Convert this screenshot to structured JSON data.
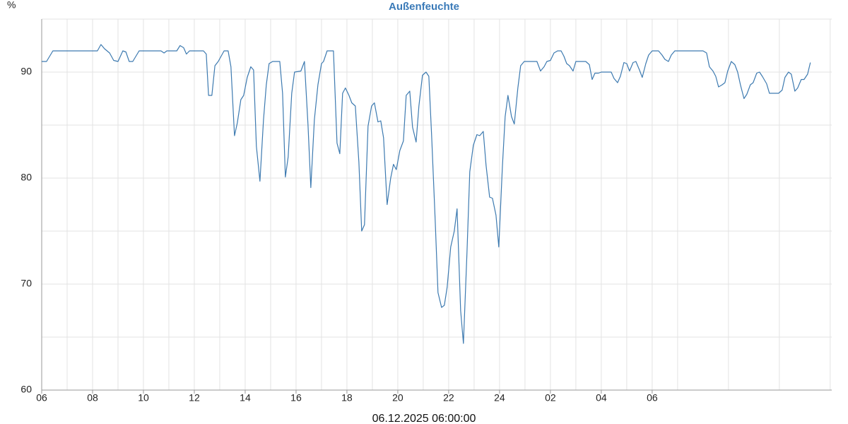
{
  "chart_data": {
    "type": "line",
    "title": "Außenfeuchte",
    "y_label": "%",
    "x_label": "06.12.2025 06:00:00",
    "xlim": [
      6,
      37.06
    ],
    "xticks": [
      {
        "value": 6,
        "label": "06"
      },
      {
        "value": 8,
        "label": "08"
      },
      10,
      12,
      14,
      16,
      18,
      20,
      22,
      24,
      {
        "value": 26,
        "label": "02"
      },
      {
        "value": 28,
        "label": "04"
      },
      {
        "value": 30,
        "label": "06"
      }
    ],
    "x_minor_ticks": [
      7,
      9,
      11,
      13,
      15,
      17,
      19,
      21,
      23,
      25,
      27,
      29,
      31,
      33,
      35,
      37
    ],
    "ylim": [
      60,
      95
    ],
    "yticks": [
      60,
      70,
      80,
      90
    ],
    "y_minor_ticks": [
      65,
      75,
      85,
      95
    ],
    "grid": true,
    "x": [
      6.0,
      6.19,
      6.44,
      8.19,
      8.33,
      8.47,
      8.67,
      8.83,
      9.0,
      9.19,
      9.31,
      9.44,
      9.58,
      9.83,
      10.69,
      10.81,
      10.92,
      11.31,
      11.44,
      11.58,
      11.69,
      11.81,
      12.36,
      12.47,
      12.56,
      12.69,
      12.81,
      12.94,
      13.17,
      13.33,
      13.44,
      13.58,
      13.69,
      13.83,
      13.94,
      14.08,
      14.22,
      14.33,
      14.44,
      14.58,
      14.72,
      14.83,
      14.94,
      15.08,
      15.36,
      15.47,
      15.58,
      15.69,
      15.83,
      15.94,
      16.19,
      16.33,
      16.47,
      16.58,
      16.72,
      16.86,
      17.0,
      17.08,
      17.22,
      17.47,
      17.61,
      17.72,
      17.83,
      17.94,
      18.08,
      18.19,
      18.33,
      18.47,
      18.58,
      18.69,
      18.83,
      18.97,
      19.08,
      19.22,
      19.33,
      19.44,
      19.58,
      19.72,
      19.83,
      19.94,
      20.08,
      20.22,
      20.33,
      20.47,
      20.58,
      20.72,
      20.83,
      20.97,
      21.11,
      21.22,
      21.33,
      21.47,
      21.58,
      21.72,
      21.83,
      21.94,
      22.08,
      22.22,
      22.33,
      22.47,
      22.58,
      22.72,
      22.83,
      22.97,
      23.11,
      23.22,
      23.36,
      23.47,
      23.61,
      23.72,
      23.86,
      23.97,
      24.11,
      24.22,
      24.33,
      24.47,
      24.58,
      24.72,
      24.83,
      24.97,
      25.47,
      25.61,
      25.75,
      25.86,
      26.0,
      26.14,
      26.28,
      26.42,
      26.53,
      26.64,
      26.75,
      26.89,
      27.0,
      27.39,
      27.53,
      27.64,
      27.75,
      27.89,
      28.0,
      28.39,
      28.5,
      28.64,
      28.75,
      28.89,
      29.0,
      29.11,
      29.25,
      29.36,
      29.5,
      29.61,
      29.75,
      29.86,
      30.0,
      30.25,
      30.39,
      30.5,
      30.64,
      30.75,
      30.89,
      32.0,
      32.14,
      32.25,
      32.39,
      32.5,
      32.61,
      32.75,
      32.86,
      32.97,
      33.11,
      33.25,
      33.36,
      33.47,
      33.61,
      33.72,
      33.86,
      33.97,
      34.11,
      34.22,
      34.33,
      34.5,
      34.61,
      34.97,
      35.11,
      35.22,
      35.36,
      35.47,
      35.61,
      35.72,
      35.86,
      35.97,
      36.11,
      36.22
    ],
    "series": [
      {
        "color": "#3d7ab0",
        "values": [
          91,
          91,
          92,
          92,
          92.6,
          92.2,
          91.8,
          91.1,
          91,
          92,
          91.9,
          91,
          91,
          92,
          92,
          91.8,
          92,
          92,
          92.5,
          92.3,
          91.7,
          92,
          92,
          91.7,
          87.8,
          87.8,
          90.6,
          91,
          92,
          92,
          90.5,
          84,
          85.2,
          87.4,
          87.8,
          89.5,
          90.5,
          90.2,
          83,
          79.7,
          85.5,
          88.8,
          90.8,
          91,
          91,
          88,
          80.1,
          82,
          88,
          90,
          90.1,
          91,
          85,
          79.1,
          85.5,
          88.8,
          90.8,
          91,
          92,
          92,
          83.3,
          82.3,
          88,
          88.5,
          87.8,
          87.1,
          86.8,
          81.5,
          75,
          75.6,
          84.9,
          86.8,
          87.1,
          85.3,
          85.4,
          83.8,
          77.5,
          80,
          81.3,
          80.8,
          82.6,
          83.5,
          87.8,
          88.2,
          84.8,
          83.4,
          86.8,
          89.7,
          90,
          89.6,
          84,
          76,
          69.2,
          67.8,
          68,
          69.7,
          73.5,
          75,
          77.1,
          67.5,
          64.4,
          73,
          80.6,
          83.1,
          84.1,
          84,
          84.4,
          81.2,
          78.2,
          78.1,
          76.5,
          73.5,
          81,
          85.8,
          87.8,
          85.8,
          85.1,
          88.5,
          90.6,
          91,
          91,
          90.1,
          90.5,
          91,
          91.1,
          91.8,
          92,
          92,
          91.5,
          90.8,
          90.6,
          90.1,
          91,
          91,
          90.7,
          89.3,
          89.9,
          89.9,
          90,
          90,
          89.4,
          89,
          89.6,
          90.9,
          90.8,
          90.1,
          90.9,
          91,
          90.2,
          89.5,
          90.8,
          91.6,
          92,
          92,
          91.6,
          91.2,
          91,
          91.6,
          92,
          92,
          91.8,
          90.5,
          90.1,
          89.6,
          88.6,
          88.8,
          89,
          90.1,
          91,
          90.7,
          90,
          88.8,
          87.5,
          87.9,
          88.8,
          89,
          89.9,
          90,
          89.6,
          88.9,
          88,
          88,
          88.3,
          89.5,
          90,
          89.8,
          88.2,
          88.5,
          89.3,
          89.3,
          89.8,
          90.9
        ]
      }
    ]
  }
}
